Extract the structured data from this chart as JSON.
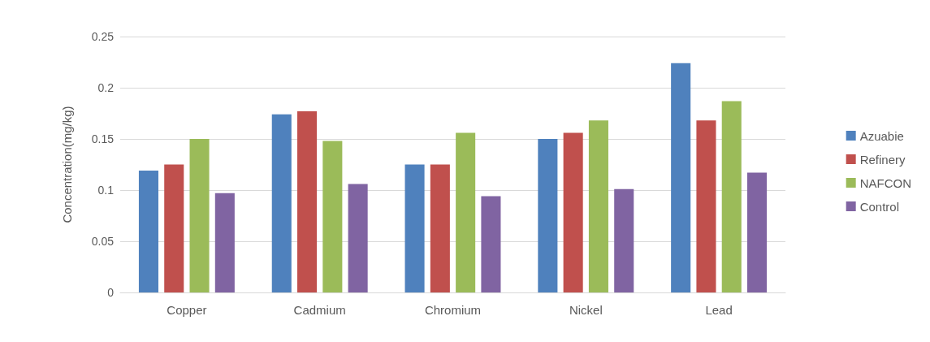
{
  "chart_data": {
    "type": "bar",
    "ylabel": "Concentration(mg/kg)",
    "categories": [
      "Copper",
      "Cadmium",
      "Chromium",
      "Nickel",
      "Lead"
    ],
    "series": [
      {
        "name": "Azuabie",
        "color": "#4f81bd",
        "values": [
          0.119,
          0.174,
          0.125,
          0.15,
          0.224
        ]
      },
      {
        "name": "Refinery",
        "color": "#c0504d",
        "values": [
          0.125,
          0.177,
          0.125,
          0.156,
          0.168
        ]
      },
      {
        "name": "NAFCON",
        "color": "#9bbb59",
        "values": [
          0.15,
          0.148,
          0.156,
          0.168,
          0.187
        ]
      },
      {
        "name": "Control",
        "color": "#8064a2",
        "values": [
          0.097,
          0.106,
          0.094,
          0.101,
          0.117
        ]
      }
    ],
    "ylim": [
      0,
      0.25
    ],
    "yticks": [
      0,
      0.05,
      0.1,
      0.15,
      0.2,
      0.25
    ],
    "grid": "y",
    "legend": "right"
  }
}
